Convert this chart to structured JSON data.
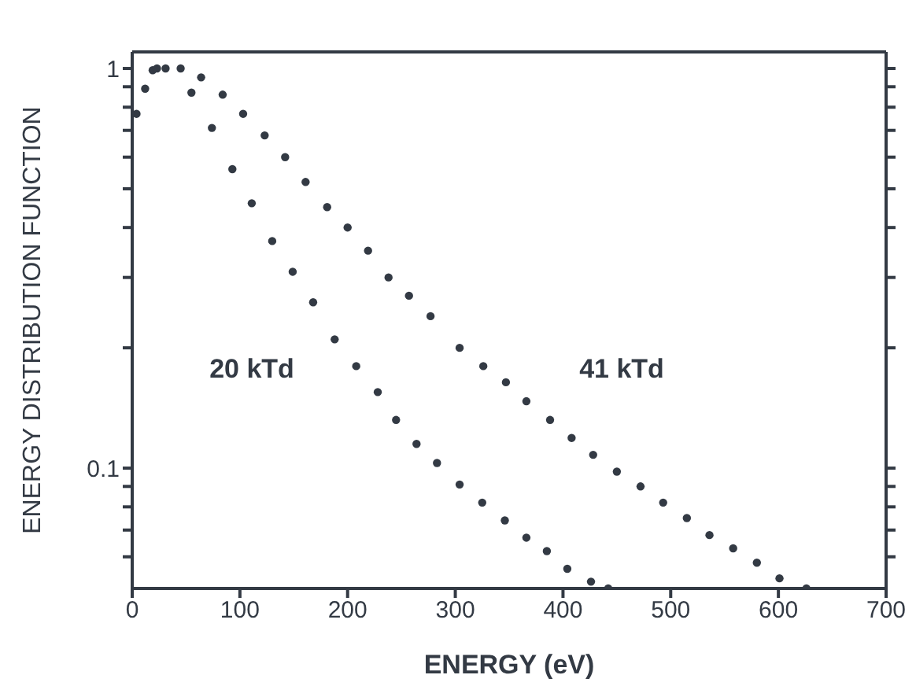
{
  "chart_data": {
    "type": "scatter",
    "xlabel": "ENERGY (eV)",
    "ylabel": "ENERGY DISTRIBUTION FUNCTION",
    "log": "y",
    "marker": "circle",
    "legend": false,
    "grid": false,
    "xlim": [
      0,
      700
    ],
    "xticks": [
      0,
      100,
      200,
      300,
      400,
      500,
      600,
      700
    ],
    "ylim": [
      0.05,
      1.1
    ],
    "yticks": [
      {
        "value": 0.06,
        "label": null
      },
      {
        "value": 0.07,
        "label": null
      },
      {
        "value": 0.08,
        "label": null
      },
      {
        "value": 0.09,
        "label": null
      },
      0.1,
      {
        "value": 0.2,
        "label": null
      },
      {
        "value": 0.3,
        "label": null
      },
      {
        "value": 0.4,
        "label": null
      },
      {
        "value": 0.5,
        "label": null
      },
      {
        "value": 0.6,
        "label": null
      },
      {
        "value": 0.7,
        "label": null
      },
      {
        "value": 0.8,
        "label": null
      },
      {
        "value": 0.9,
        "label": null
      },
      1
    ],
    "annotations": [
      "20 kTd",
      "41 kTd"
    ],
    "series": [
      {
        "color": "#333a44",
        "x": [
          4,
          12,
          19,
          31,
          55,
          74,
          93,
          111,
          130,
          149,
          168,
          188,
          208,
          228,
          245,
          264,
          283,
          304,
          325,
          346,
          366,
          385,
          404,
          426,
          442
        ],
        "values": [
          0.77,
          0.89,
          0.99,
          1.0,
          0.87,
          0.71,
          0.56,
          0.46,
          0.37,
          0.31,
          0.26,
          0.21,
          0.18,
          0.155,
          0.132,
          0.115,
          0.103,
          0.091,
          0.082,
          0.074,
          0.067,
          0.062,
          0.056,
          0.052,
          0.05
        ]
      },
      {
        "color": "#333a44",
        "x": [
          23,
          45,
          64,
          84,
          103,
          123,
          142,
          161,
          181,
          200,
          219,
          238,
          257,
          277,
          304,
          326,
          347,
          366,
          388,
          408,
          428,
          450,
          472,
          493,
          515,
          536,
          558,
          580,
          601,
          626
        ],
        "values": [
          1.0,
          1.0,
          0.95,
          0.86,
          0.77,
          0.68,
          0.6,
          0.52,
          0.45,
          0.4,
          0.35,
          0.3,
          0.27,
          0.24,
          0.2,
          0.18,
          0.164,
          0.147,
          0.132,
          0.119,
          0.108,
          0.098,
          0.09,
          0.082,
          0.075,
          0.068,
          0.063,
          0.058,
          0.053,
          0.05
        ]
      }
    ]
  }
}
